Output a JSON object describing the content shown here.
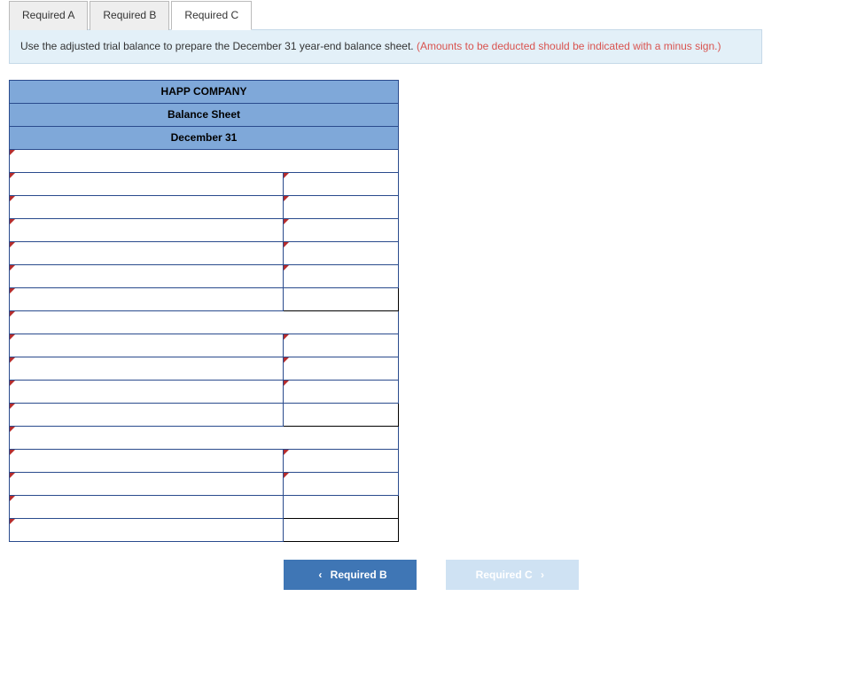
{
  "tabs": [
    {
      "label": "Required A",
      "active": false
    },
    {
      "label": "Required B",
      "active": false
    },
    {
      "label": "Required C",
      "active": true
    }
  ],
  "instructions": {
    "main": "Use the adjusted trial balance to prepare the December 31 year-end balance sheet. ",
    "red": "(Amounts to be deducted should be indicated with a minus sign.)"
  },
  "worksheet": {
    "header1": "HAPP COMPANY",
    "header2": "Balance Sheet",
    "header3": "December 31",
    "rows": [
      {
        "desc_edit": true,
        "has_val": false
      },
      {
        "desc_edit": true,
        "val_edit": true
      },
      {
        "desc_edit": true,
        "val_edit": true
      },
      {
        "desc_edit": true,
        "val_edit": true
      },
      {
        "desc_edit": true,
        "val_edit": true
      },
      {
        "desc_edit": true,
        "val_edit": true
      },
      {
        "desc_edit": true,
        "val_plain": true
      },
      {
        "desc_edit": true,
        "has_val": false
      },
      {
        "desc_edit": true,
        "val_edit": true
      },
      {
        "desc_edit": true,
        "val_edit": true
      },
      {
        "desc_edit": true,
        "val_edit": true
      },
      {
        "desc_edit": true,
        "val_plain": true
      },
      {
        "desc_edit": true,
        "has_val": false
      },
      {
        "desc_edit": true,
        "val_edit": true
      },
      {
        "desc_edit": true,
        "val_edit": true
      },
      {
        "desc_edit": true,
        "val_plain": true
      },
      {
        "desc_edit": true,
        "val_plain": true
      }
    ]
  },
  "nav": {
    "prev_label": "Required B",
    "next_label": "Required C"
  },
  "colors": {
    "header_bg": "#7fa8d9",
    "border": "#2a4b8d",
    "instr_bg": "#e3f0f8",
    "red_text": "#d9534f",
    "btn_primary": "#3f76b5",
    "btn_disabled": "#cfe2f3"
  }
}
